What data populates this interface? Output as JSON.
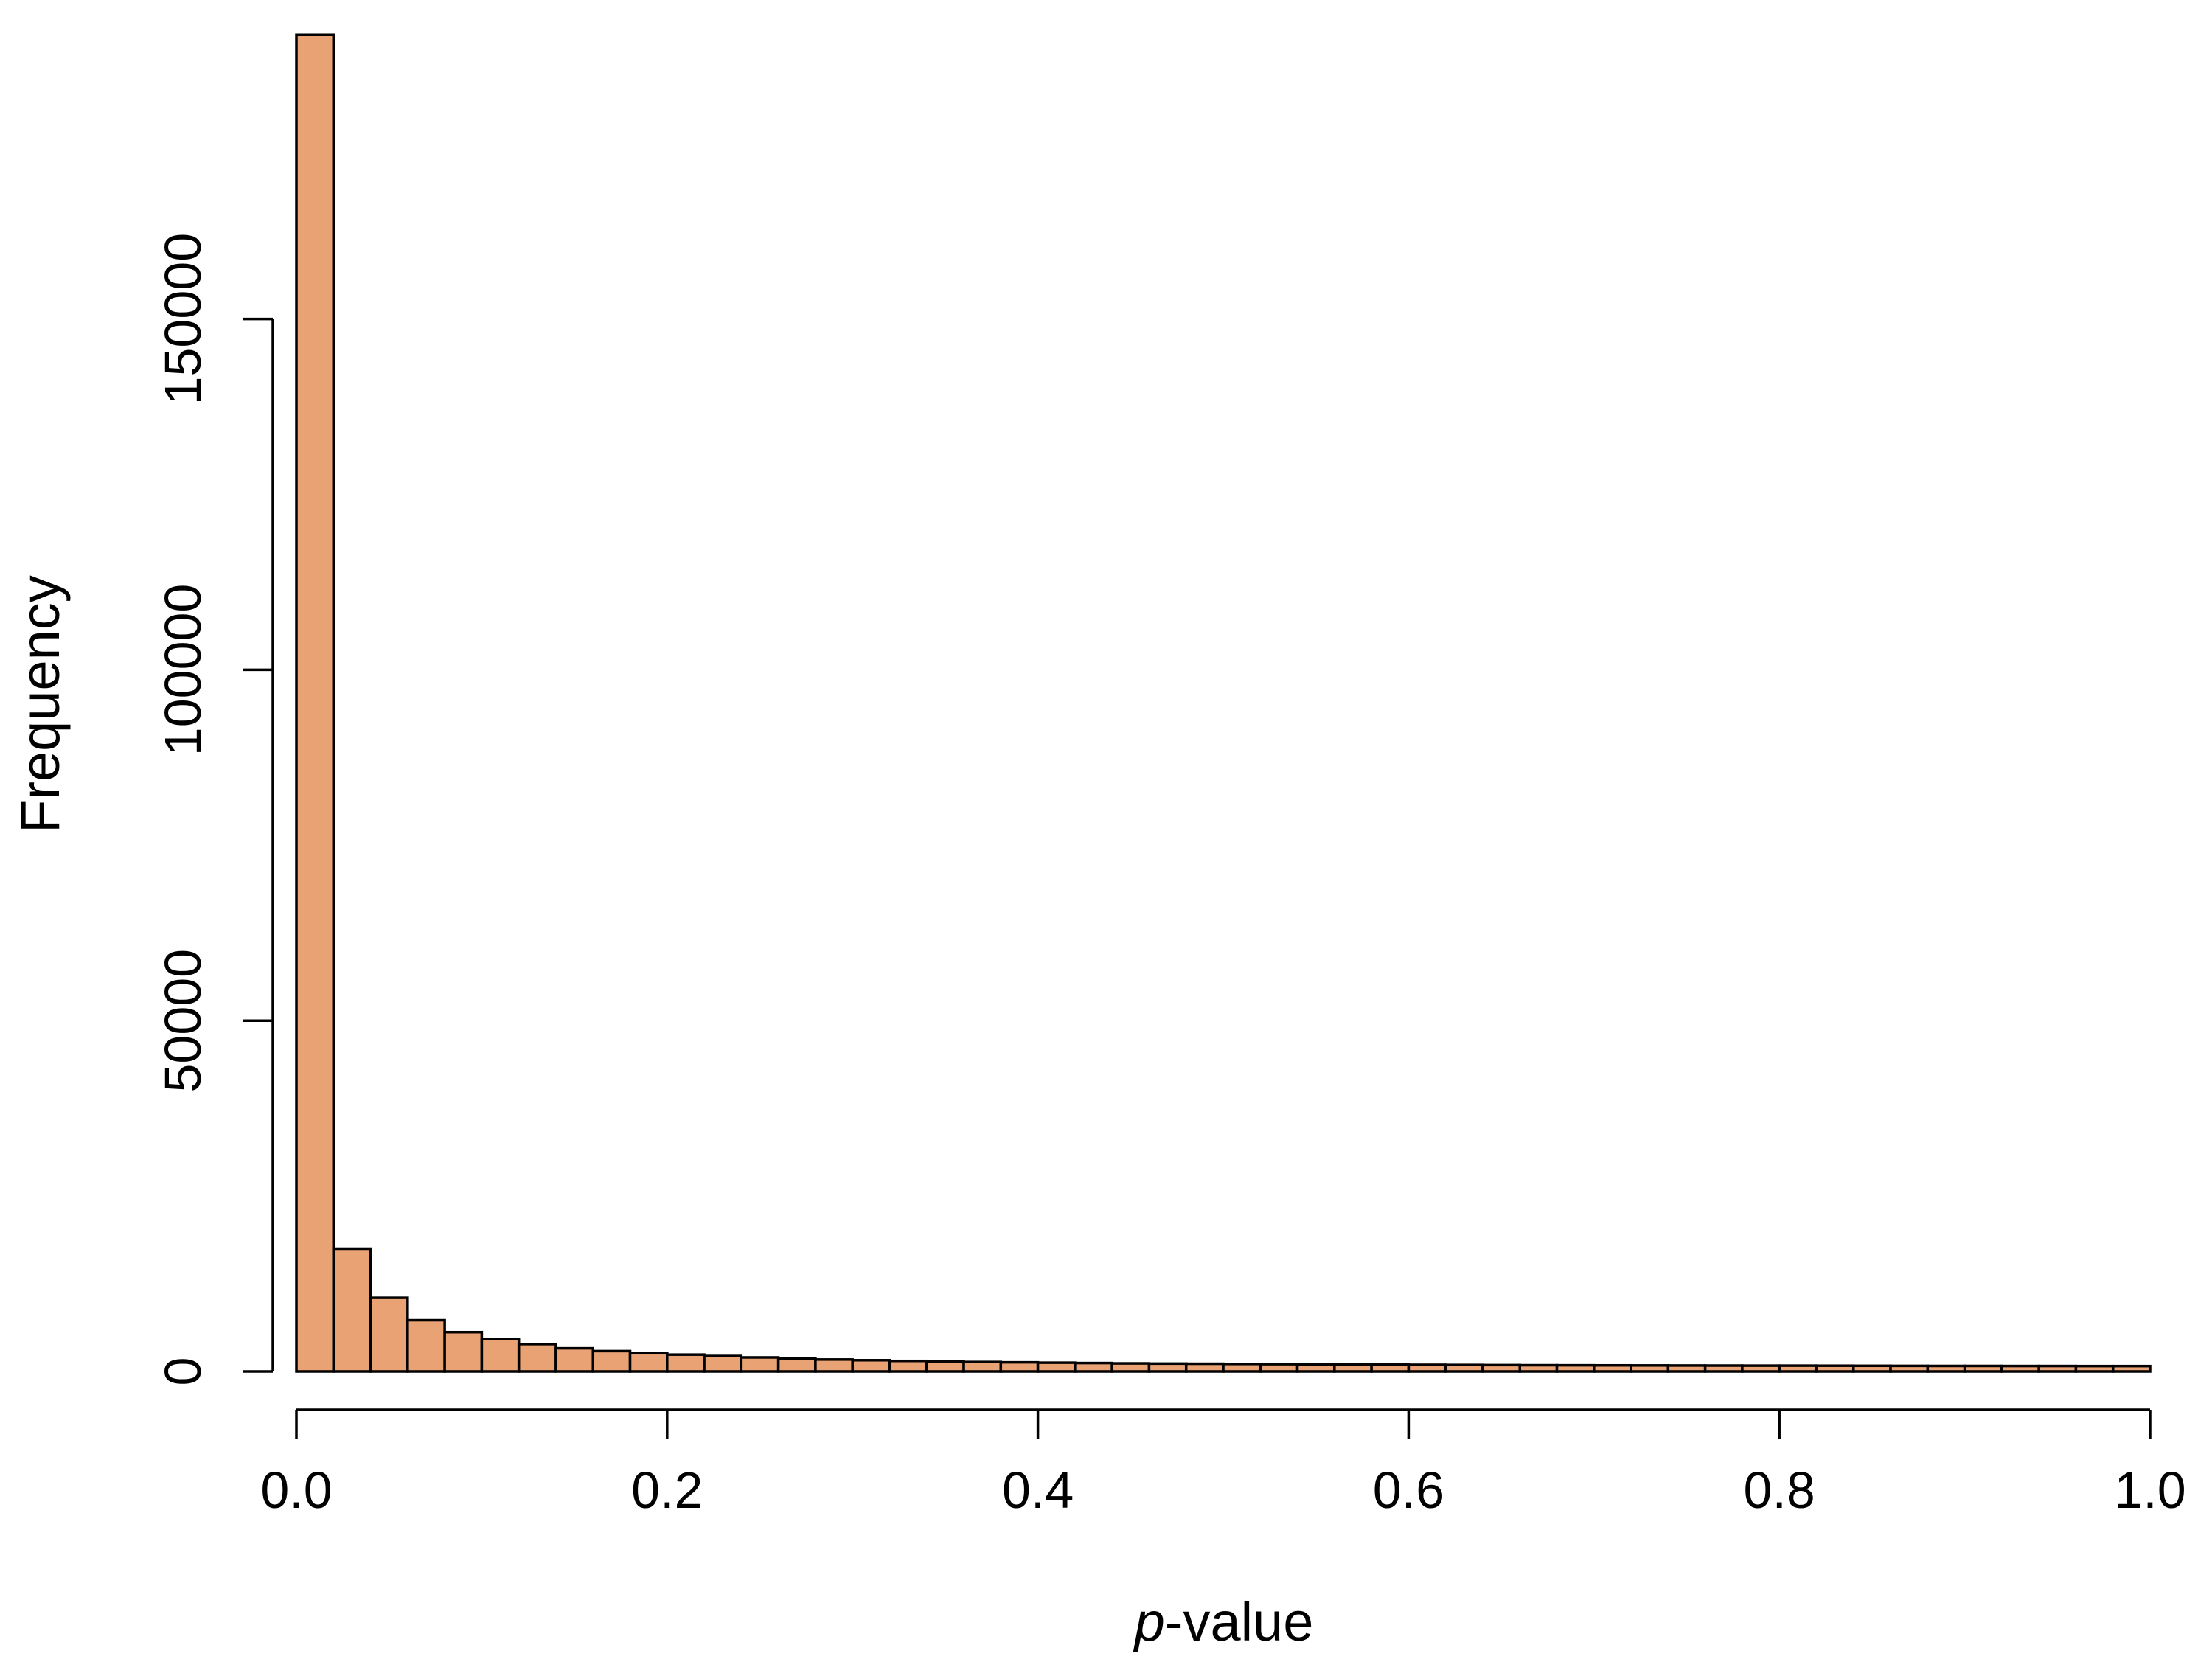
{
  "chart_data": {
    "type": "bar",
    "subtype": "histogram",
    "title": "",
    "xlabel_italic": "p",
    "xlabel_rest": "-value",
    "ylabel": "Frequency",
    "bin_width": 0.02,
    "xlim": [
      0,
      1
    ],
    "ylim": [
      0,
      190000
    ],
    "x_ticks": [
      0.0,
      0.2,
      0.4,
      0.6,
      0.8,
      1.0
    ],
    "x_tick_labels": [
      "0.0",
      "0.2",
      "0.4",
      "0.6",
      "0.8",
      "1.0"
    ],
    "y_ticks": [
      0,
      50000,
      100000,
      150000
    ],
    "y_tick_labels": [
      "0",
      "50000",
      "100000",
      "150000"
    ],
    "bar_color": "#E9A273",
    "edge_color": "#000000",
    "grid": false,
    "legend": "none",
    "values": [
      190500,
      17500,
      10500,
      7300,
      5600,
      4600,
      3900,
      3300,
      2900,
      2600,
      2400,
      2200,
      2000,
      1850,
      1700,
      1600,
      1500,
      1420,
      1350,
      1300,
      1250,
      1200,
      1150,
      1120,
      1100,
      1070,
      1040,
      1010,
      990,
      970,
      950,
      930,
      910,
      890,
      880,
      870,
      860,
      850,
      840,
      830,
      830,
      820,
      810,
      800,
      790,
      790,
      780,
      780,
      770,
      770
    ]
  }
}
